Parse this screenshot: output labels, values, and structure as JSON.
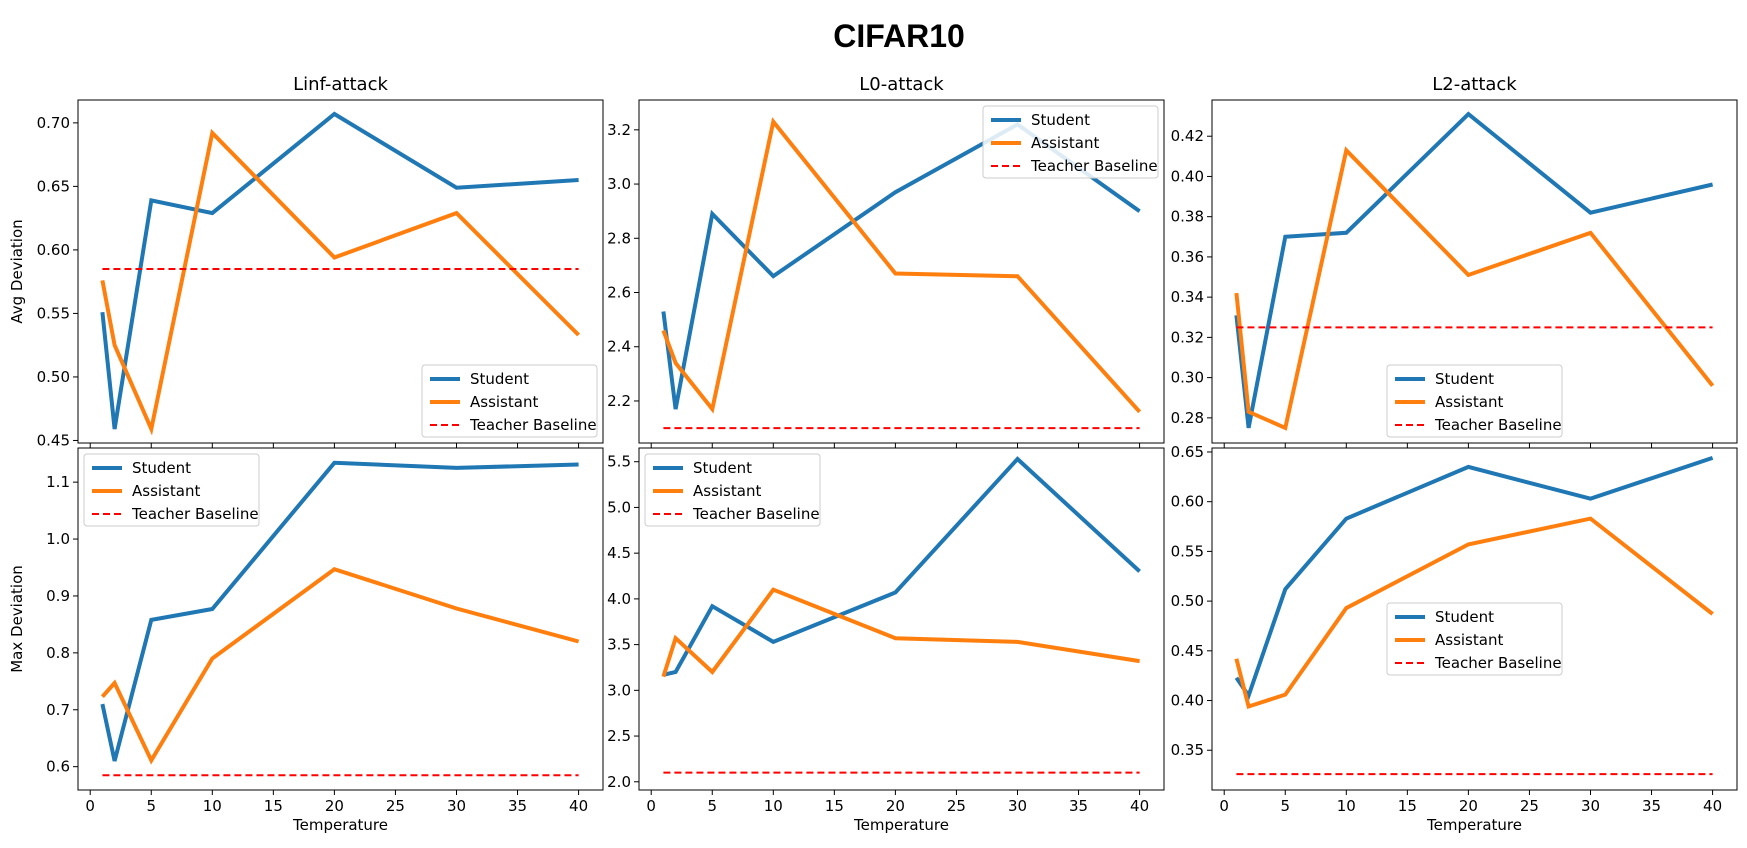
{
  "suptitle": "CIFAR10",
  "x_label": "Temperature",
  "series_names": [
    "Student",
    "Assistant",
    "Teacher Baseline"
  ],
  "colors": {
    "Student": "#1f77b4",
    "Assistant": "#ff7f0e",
    "Teacher Baseline": "#ff0000"
  },
  "chart_data": [
    {
      "type": "line",
      "title": "Linf-attack",
      "xlabel": "",
      "ylabel": "Avg Deviation",
      "xlim": [
        -1,
        42
      ],
      "ylim": [
        0.448,
        0.718
      ],
      "xticks": [],
      "yticks": [
        "0.45",
        "0.50",
        "0.55",
        "0.60",
        "0.65",
        "0.70"
      ],
      "legend_position": "lower-right",
      "x": [
        1,
        2,
        5,
        10,
        20,
        30,
        40
      ],
      "series": [
        {
          "name": "Student",
          "values": [
            0.551,
            0.459,
            0.639,
            0.629,
            0.707,
            0.649,
            0.655
          ]
        },
        {
          "name": "Assistant",
          "values": [
            0.576,
            0.525,
            0.459,
            0.692,
            0.594,
            0.629,
            0.533
          ]
        },
        {
          "name": "Teacher Baseline",
          "baseline": 0.585
        }
      ]
    },
    {
      "type": "line",
      "title": "L0-attack",
      "xlabel": "",
      "ylabel": "",
      "xlim": [
        -1,
        42
      ],
      "ylim": [
        2.045,
        3.31
      ],
      "xticks": [],
      "yticks": [
        "2.2",
        "2.4",
        "2.6",
        "2.8",
        "3.0",
        "3.2"
      ],
      "legend_position": "upper-right",
      "x": [
        1,
        2,
        5,
        10,
        20,
        30,
        40
      ],
      "series": [
        {
          "name": "Student",
          "values": [
            2.53,
            2.17,
            2.89,
            2.66,
            2.97,
            3.22,
            2.9
          ]
        },
        {
          "name": "Assistant",
          "values": [
            2.46,
            2.34,
            2.17,
            3.23,
            2.67,
            2.66,
            2.16
          ]
        },
        {
          "name": "Teacher Baseline",
          "baseline": 2.1
        }
      ]
    },
    {
      "type": "line",
      "title": "L2-attack",
      "xlabel": "",
      "ylabel": "",
      "xlim": [
        -1,
        42
      ],
      "ylim": [
        0.2675,
        0.438
      ],
      "xticks": [],
      "yticks": [
        "0.28",
        "0.30",
        "0.32",
        "0.34",
        "0.36",
        "0.38",
        "0.40",
        "0.42"
      ],
      "legend_position": "lower-center",
      "x": [
        1,
        2,
        5,
        10,
        20,
        30,
        40
      ],
      "series": [
        {
          "name": "Student",
          "values": [
            0.331,
            0.275,
            0.37,
            0.372,
            0.431,
            0.382,
            0.396
          ]
        },
        {
          "name": "Assistant",
          "values": [
            0.342,
            0.283,
            0.275,
            0.413,
            0.351,
            0.372,
            0.296
          ]
        },
        {
          "name": "Teacher Baseline",
          "baseline": 0.325
        }
      ]
    },
    {
      "type": "line",
      "title": "",
      "xlabel": "Temperature",
      "ylabel": "Max Deviation",
      "xlim": [
        -1,
        42
      ],
      "ylim": [
        0.559,
        1.16
      ],
      "xticks": [
        "0",
        "5",
        "10",
        "15",
        "20",
        "25",
        "30",
        "35",
        "40"
      ],
      "yticks": [
        "0.6",
        "0.7",
        "0.8",
        "0.9",
        "1.0",
        "1.1"
      ],
      "legend_position": "upper-left",
      "x": [
        1,
        2,
        5,
        10,
        20,
        30,
        40
      ],
      "series": [
        {
          "name": "Student",
          "values": [
            0.71,
            0.61,
            0.858,
            0.877,
            1.134,
            1.125,
            1.131
          ]
        },
        {
          "name": "Assistant",
          "values": [
            0.723,
            0.747,
            0.611,
            0.79,
            0.947,
            0.878,
            0.82
          ]
        },
        {
          "name": "Teacher Baseline",
          "baseline": 0.585
        }
      ]
    },
    {
      "type": "line",
      "title": "",
      "xlabel": "Temperature",
      "ylabel": "",
      "xlim": [
        -1,
        42
      ],
      "ylim": [
        1.91,
        5.65
      ],
      "xticks": [
        "0",
        "5",
        "10",
        "15",
        "20",
        "25",
        "30",
        "35",
        "40"
      ],
      "yticks": [
        "2.0",
        "2.5",
        "3.0",
        "3.5",
        "4.0",
        "4.5",
        "5.0",
        "5.5"
      ],
      "legend_position": "upper-left",
      "x": [
        1,
        2,
        5,
        10,
        20,
        30,
        40
      ],
      "series": [
        {
          "name": "Student",
          "values": [
            3.17,
            3.2,
            3.92,
            3.53,
            4.07,
            5.53,
            4.3
          ]
        },
        {
          "name": "Assistant",
          "values": [
            3.15,
            3.57,
            3.2,
            4.1,
            3.57,
            3.53,
            3.32
          ]
        },
        {
          "name": "Teacher Baseline",
          "baseline": 2.1
        }
      ]
    },
    {
      "type": "line",
      "title": "",
      "xlabel": "Temperature",
      "ylabel": "",
      "xlim": [
        -1,
        42
      ],
      "ylim": [
        0.31,
        0.654
      ],
      "xticks": [
        "0",
        "5",
        "10",
        "15",
        "20",
        "25",
        "30",
        "35",
        "40"
      ],
      "yticks": [
        "0.35",
        "0.40",
        "0.45",
        "0.50",
        "0.55",
        "0.60",
        "0.65"
      ],
      "legend_position": "center",
      "x": [
        1,
        2,
        5,
        10,
        20,
        30,
        40
      ],
      "series": [
        {
          "name": "Student",
          "values": [
            0.423,
            0.405,
            0.512,
            0.583,
            0.635,
            0.603,
            0.644
          ]
        },
        {
          "name": "Assistant",
          "values": [
            0.442,
            0.394,
            0.406,
            0.493,
            0.557,
            0.583,
            0.487
          ]
        },
        {
          "name": "Teacher Baseline",
          "baseline": 0.326
        }
      ]
    }
  ]
}
